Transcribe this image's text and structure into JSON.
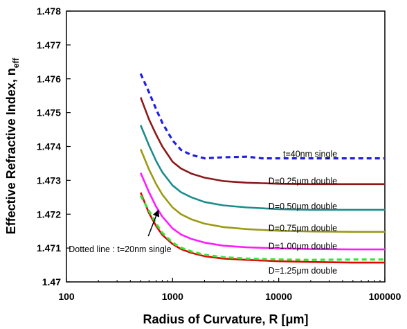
{
  "chart_data": {
    "type": "line",
    "xlabel": "Radius of Curvature, R [μm]",
    "ylabel_main": "Effective Refractive Index, n",
    "ylabel_sub": "eff",
    "xscale": "log",
    "xlim": [
      100,
      100000
    ],
    "ylim": [
      1.47,
      1.478
    ],
    "x_ticks": [
      {
        "value": 100,
        "label": "100"
      },
      {
        "value": 1000,
        "label": "1000"
      },
      {
        "value": 10000,
        "label": "10000"
      },
      {
        "value": 100000,
        "label": "100000"
      }
    ],
    "y_ticks": [
      {
        "value": 1.47,
        "label": "1.47"
      },
      {
        "value": 1.471,
        "label": "1.471"
      },
      {
        "value": 1.472,
        "label": "1.472"
      },
      {
        "value": 1.473,
        "label": "1.473"
      },
      {
        "value": 1.474,
        "label": "1.474"
      },
      {
        "value": 1.475,
        "label": "1.475"
      },
      {
        "value": 1.476,
        "label": "1.476"
      },
      {
        "value": 1.477,
        "label": "1.477"
      },
      {
        "value": 1.478,
        "label": "1.478"
      }
    ],
    "grid": false,
    "series": [
      {
        "name": "t=40nm  single",
        "color": "#1f1fe6",
        "dash": true,
        "label_at": [
          11000,
          1.47378
        ],
        "points": [
          [
            500,
            1.47615
          ],
          [
            600,
            1.4756
          ],
          [
            700,
            1.4751
          ],
          [
            800,
            1.4747
          ],
          [
            1000,
            1.47418
          ],
          [
            1200,
            1.4739
          ],
          [
            1500,
            1.47375
          ],
          [
            2000,
            1.47365
          ],
          [
            3000,
            1.47368
          ],
          [
            5000,
            1.4737
          ],
          [
            7000,
            1.47365
          ],
          [
            10000,
            1.47365
          ],
          [
            20000,
            1.47365
          ],
          [
            50000,
            1.47365
          ],
          [
            100000,
            1.47365
          ]
        ]
      },
      {
        "name": "D=0.25μm double",
        "color": "#8b1a1a",
        "dash": false,
        "label_at": [
          8000,
          1.47298
        ],
        "points": [
          [
            500,
            1.47545
          ],
          [
            600,
            1.4748
          ],
          [
            700,
            1.47435
          ],
          [
            800,
            1.474
          ],
          [
            1000,
            1.47355
          ],
          [
            1200,
            1.47335
          ],
          [
            1500,
            1.4732
          ],
          [
            2000,
            1.47308
          ],
          [
            3000,
            1.47298
          ],
          [
            5000,
            1.47293
          ],
          [
            10000,
            1.4729
          ],
          [
            20000,
            1.47289
          ],
          [
            50000,
            1.47289
          ],
          [
            100000,
            1.47289
          ]
        ]
      },
      {
        "name": "D=0.50μm double",
        "color": "#1a8c8c",
        "dash": false,
        "label_at": [
          8000,
          1.47223
        ],
        "points": [
          [
            500,
            1.47463
          ],
          [
            600,
            1.47403
          ],
          [
            700,
            1.47357
          ],
          [
            800,
            1.47324
          ],
          [
            1000,
            1.47285
          ],
          [
            1200,
            1.47265
          ],
          [
            1500,
            1.4725
          ],
          [
            2000,
            1.47236
          ],
          [
            3000,
            1.47226
          ],
          [
            5000,
            1.4722
          ],
          [
            10000,
            1.47215
          ],
          [
            20000,
            1.47213
          ],
          [
            50000,
            1.47213
          ],
          [
            100000,
            1.47213
          ]
        ]
      },
      {
        "name": "D=0.75μm double",
        "color": "#9a9a14",
        "dash": false,
        "label_at": [
          8000,
          1.47159
        ],
        "points": [
          [
            500,
            1.47392
          ],
          [
            600,
            1.47332
          ],
          [
            700,
            1.47289
          ],
          [
            800,
            1.47258
          ],
          [
            1000,
            1.4722
          ],
          [
            1200,
            1.472
          ],
          [
            1500,
            1.47185
          ],
          [
            2000,
            1.47172
          ],
          [
            3000,
            1.47162
          ],
          [
            5000,
            1.47156
          ],
          [
            10000,
            1.47151
          ],
          [
            20000,
            1.47149
          ],
          [
            50000,
            1.47148
          ],
          [
            100000,
            1.47148
          ]
        ]
      },
      {
        "name": "D=1.00μm double",
        "color": "#ff1aff",
        "dash": false,
        "label_at": [
          8000,
          1.47105
        ],
        "points": [
          [
            500,
            1.47322
          ],
          [
            600,
            1.47265
          ],
          [
            700,
            1.47222
          ],
          [
            800,
            1.47193
          ],
          [
            1000,
            1.47158
          ],
          [
            1200,
            1.4714
          ],
          [
            1500,
            1.47127
          ],
          [
            2000,
            1.47116
          ],
          [
            3000,
            1.47107
          ],
          [
            5000,
            1.47102
          ],
          [
            10000,
            1.47099
          ],
          [
            20000,
            1.47097
          ],
          [
            50000,
            1.47096
          ],
          [
            100000,
            1.47096
          ]
        ]
      },
      {
        "name": "D=1.25μm double",
        "color": "#e60000",
        "dash": false,
        "label_at": [
          8000,
          1.47033
        ],
        "points": [
          [
            500,
            1.47264
          ],
          [
            600,
            1.47203
          ],
          [
            700,
            1.47165
          ],
          [
            800,
            1.47139
          ],
          [
            1000,
            1.47112
          ],
          [
            1200,
            1.47097
          ],
          [
            1500,
            1.47086
          ],
          [
            2000,
            1.47076
          ],
          [
            3000,
            1.47069
          ],
          [
            5000,
            1.47065
          ],
          [
            10000,
            1.47061
          ],
          [
            20000,
            1.47059
          ],
          [
            50000,
            1.47057
          ],
          [
            100000,
            1.47057
          ]
        ]
      },
      {
        "name": "t=20nm  single",
        "color": "#33e633",
        "dash": true,
        "points": [
          [
            500,
            1.47255
          ],
          [
            600,
            1.4721
          ],
          [
            700,
            1.47172
          ],
          [
            800,
            1.47145
          ],
          [
            1000,
            1.47116
          ],
          [
            1200,
            1.47101
          ],
          [
            1500,
            1.4709
          ],
          [
            2000,
            1.4708
          ],
          [
            3000,
            1.47073
          ],
          [
            5000,
            1.47069
          ],
          [
            10000,
            1.47066
          ],
          [
            20000,
            1.47065
          ],
          [
            50000,
            1.47066
          ],
          [
            100000,
            1.47066
          ]
        ]
      }
    ],
    "annotation": {
      "text": "Dotted line : t=20nm  single",
      "label_at": [
        105,
        1.47088
      ],
      "arrow_from": [
        590,
        1.47135
      ],
      "arrow_to": [
        730,
        1.4721
      ]
    }
  }
}
